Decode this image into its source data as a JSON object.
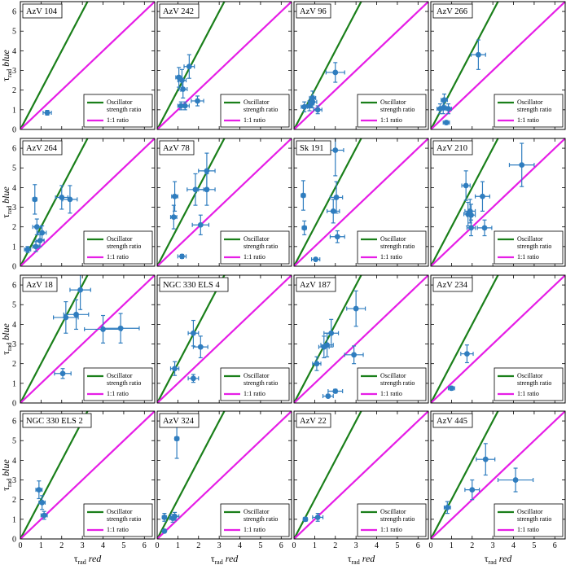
{
  "colors": {
    "oscillator": "#1a7f1a",
    "unity": "#e61ee6",
    "points": "#2f7dbf"
  },
  "legend": {
    "oscillator_line1": "Oscillator",
    "oscillator_line2": "strength ratio",
    "unity": "1:1 ratio"
  },
  "axes": {
    "xlabel_tau": "τ",
    "xlabel_sub": "rad",
    "xlabel_word": "red",
    "ylabel_tau": "τ",
    "ylabel_sub": "rad",
    "ylabel_word": "blue"
  },
  "chart_data": {
    "type": "scatter",
    "xlim": [
      0,
      6.5
    ],
    "ylim": [
      0,
      6.5
    ],
    "xticks": [
      0,
      1,
      2,
      3,
      4,
      5,
      6
    ],
    "yticks": [
      0,
      1,
      2,
      3,
      4,
      5,
      6
    ],
    "grid": false,
    "legend_placement": "lower-right",
    "oscillator_slope": 2.0,
    "unity_slope": 1.0,
    "panels": [
      {
        "title": "AzV 104",
        "points": [
          [
            1.3,
            0.85,
            0.2,
            0.12
          ]
        ]
      },
      {
        "title": "AzV 242",
        "points": [
          [
            1.55,
            3.2,
            0.25,
            0.6
          ],
          [
            1.05,
            2.65,
            0.15,
            0.5
          ],
          [
            1.2,
            2.5,
            0.2,
            0.55
          ],
          [
            1.25,
            2.05,
            0.2,
            0.45
          ],
          [
            1.95,
            1.45,
            0.3,
            0.25
          ],
          [
            1.15,
            1.2,
            0.15,
            0.2
          ],
          [
            1.35,
            1.2,
            0.2,
            0.2
          ]
        ]
      },
      {
        "title": "AzV 96",
        "points": [
          [
            2.0,
            2.9,
            0.45,
            0.5
          ],
          [
            0.9,
            1.6,
            0.15,
            0.35
          ],
          [
            0.9,
            1.4,
            0.2,
            0.3
          ],
          [
            0.5,
            1.15,
            0.15,
            0.25
          ],
          [
            0.75,
            1.2,
            0.15,
            0.25
          ],
          [
            1.15,
            1.0,
            0.2,
            0.2
          ]
        ]
      },
      {
        "title": "AzV 266",
        "points": [
          [
            2.3,
            3.8,
            0.35,
            0.75
          ],
          [
            0.65,
            1.5,
            0.15,
            0.3
          ],
          [
            0.6,
            1.1,
            0.15,
            0.3
          ],
          [
            0.45,
            1.05,
            0.15,
            0.25
          ],
          [
            0.85,
            1.05,
            0.15,
            0.25
          ],
          [
            0.75,
            0.35,
            0.15,
            0.1
          ]
        ]
      },
      {
        "title": "AzV 264",
        "points": [
          [
            0.7,
            3.4,
            0.1,
            0.75
          ],
          [
            2.0,
            3.5,
            0.3,
            0.6
          ],
          [
            2.4,
            3.4,
            0.35,
            0.7
          ],
          [
            0.8,
            2.0,
            0.2,
            0.4
          ],
          [
            1.05,
            1.7,
            0.2,
            0.35
          ],
          [
            0.95,
            1.3,
            0.2,
            0.3
          ],
          [
            0.75,
            1.0,
            0.15,
            0.25
          ],
          [
            0.35,
            0.85,
            0.15,
            0.15
          ]
        ]
      },
      {
        "title": "AzV 78",
        "points": [
          [
            2.4,
            4.85,
            0.4,
            0.9
          ],
          [
            1.85,
            3.9,
            0.4,
            0.8
          ],
          [
            2.4,
            3.9,
            0.4,
            0.8
          ],
          [
            0.85,
            3.55,
            0.15,
            0.75
          ],
          [
            0.8,
            2.5,
            0.15,
            0.6
          ],
          [
            2.1,
            2.1,
            0.4,
            0.5
          ],
          [
            1.2,
            0.5,
            0.2,
            0.1
          ]
        ]
      },
      {
        "title": "Sk 191",
        "points": [
          [
            2.0,
            5.9,
            0.4,
            1.3
          ],
          [
            0.45,
            3.6,
            0.1,
            0.75
          ],
          [
            2.05,
            3.5,
            0.3,
            0.8
          ],
          [
            1.9,
            2.8,
            0.3,
            0.6
          ],
          [
            0.5,
            1.95,
            0.1,
            0.35
          ],
          [
            2.1,
            1.5,
            0.35,
            0.3
          ],
          [
            1.05,
            0.35,
            0.2,
            0.05
          ]
        ]
      },
      {
        "title": "AzV 210",
        "points": [
          [
            4.4,
            5.15,
            0.6,
            1.1
          ],
          [
            1.7,
            4.1,
            0.2,
            0.75
          ],
          [
            2.5,
            3.55,
            0.35,
            0.75
          ],
          [
            1.9,
            2.8,
            0.25,
            0.6
          ],
          [
            1.8,
            2.65,
            0.2,
            0.6
          ],
          [
            1.95,
            2.6,
            0.2,
            0.55
          ],
          [
            1.95,
            1.95,
            0.2,
            0.4
          ],
          [
            2.6,
            1.95,
            0.35,
            0.4
          ]
        ]
      },
      {
        "title": "AzV 18",
        "points": [
          [
            2.9,
            5.75,
            0.5,
            1.0
          ],
          [
            2.7,
            4.5,
            0.6,
            0.75
          ],
          [
            2.2,
            4.35,
            0.6,
            0.8
          ],
          [
            4.0,
            3.75,
            0.9,
            0.7
          ],
          [
            4.85,
            3.8,
            0.9,
            0.75
          ],
          [
            2.05,
            1.5,
            0.4,
            0.25
          ]
        ]
      },
      {
        "title": "NGC 330 ELS 4",
        "points": [
          [
            1.75,
            3.55,
            0.25,
            0.65
          ],
          [
            2.1,
            2.85,
            0.35,
            0.55
          ],
          [
            0.85,
            1.75,
            0.2,
            0.35
          ],
          [
            1.75,
            1.25,
            0.25,
            0.2
          ]
        ]
      },
      {
        "title": "AzV 187",
        "points": [
          [
            3.0,
            4.8,
            0.45,
            0.9
          ],
          [
            1.8,
            3.55,
            0.35,
            0.7
          ],
          [
            1.6,
            2.95,
            0.3,
            0.6
          ],
          [
            1.45,
            2.85,
            0.25,
            0.55
          ],
          [
            2.9,
            2.45,
            0.45,
            0.45
          ],
          [
            1.1,
            2.0,
            0.2,
            0.35
          ],
          [
            2.0,
            0.6,
            0.35,
            0.1
          ],
          [
            1.65,
            0.35,
            0.25,
            0.05
          ]
        ]
      },
      {
        "title": "AzV 234",
        "points": [
          [
            1.75,
            2.5,
            0.3,
            0.45
          ],
          [
            1.0,
            0.75,
            0.15,
            0.1
          ]
        ]
      },
      {
        "title": "NGC 330 ELS 2",
        "points": [
          [
            0.9,
            2.5,
            0.15,
            0.45
          ],
          [
            1.05,
            1.85,
            0.15,
            0.35
          ],
          [
            1.15,
            1.2,
            0.15,
            0.2
          ]
        ]
      },
      {
        "title": "AzV 324",
        "points": [
          [
            0.95,
            5.1,
            0.1,
            1.0
          ],
          [
            0.35,
            1.1,
            0.1,
            0.2
          ],
          [
            0.85,
            1.15,
            0.2,
            0.2
          ],
          [
            0.75,
            1.05,
            0.15,
            0.2
          ],
          [
            0.35,
            0.4,
            0.05,
            0.05
          ]
        ]
      },
      {
        "title": "AzV 22",
        "points": [
          [
            1.15,
            1.1,
            0.25,
            0.2
          ],
          [
            0.55,
            1.0,
            0.1,
            0.1
          ]
        ]
      },
      {
        "title": "AzV 445",
        "points": [
          [
            2.65,
            4.05,
            0.45,
            0.8
          ],
          [
            4.1,
            3.0,
            0.85,
            0.6
          ],
          [
            2.0,
            2.5,
            0.35,
            0.5
          ],
          [
            0.8,
            1.6,
            0.15,
            0.3
          ]
        ]
      }
    ]
  }
}
